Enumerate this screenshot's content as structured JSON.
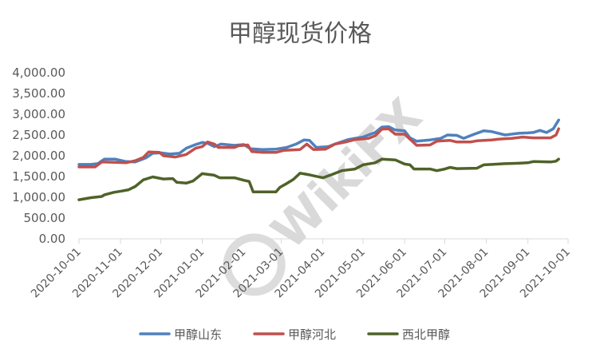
{
  "chart_data": {
    "type": "line",
    "title": "甲醇现货价格",
    "xlabel": "",
    "ylabel": "",
    "ylim": [
      0,
      4000
    ],
    "yticks": [
      "0.00",
      "500.00",
      "1,000.00",
      "1,500.00",
      "2,000.00",
      "2,500.00",
      "3,000.00",
      "3,500.00",
      "4,000.00"
    ],
    "xticks": [
      "2020-10-01",
      "2020-11-01",
      "2020-12-01",
      "2021-01-01",
      "2021-02-01",
      "2021-03-01",
      "2021-04-01",
      "2021-05-01",
      "2021-06-01",
      "2021-07-01",
      "2021-08-01",
      "2021-09-01",
      "2021-10-01"
    ],
    "xlim": [
      "2020-10-01",
      "2021-10-01"
    ],
    "grid": false,
    "legend_position": "bottom",
    "watermark": "WikiFX",
    "series": [
      {
        "name": "甲醇山东",
        "color": "#4f81bd",
        "points": [
          [
            "2020-10-01",
            1790
          ],
          [
            "2020-10-10",
            1790
          ],
          [
            "2020-10-15",
            1810
          ],
          [
            "2020-10-20",
            1920
          ],
          [
            "2020-10-28",
            1920
          ],
          [
            "2020-11-05",
            1860
          ],
          [
            "2020-11-12",
            1850
          ],
          [
            "2020-11-20",
            1950
          ],
          [
            "2020-11-25",
            2060
          ],
          [
            "2020-12-01",
            2070
          ],
          [
            "2020-12-08",
            2040
          ],
          [
            "2020-12-15",
            2060
          ],
          [
            "2020-12-20",
            2180
          ],
          [
            "2020-12-27",
            2270
          ],
          [
            "2021-01-01",
            2320
          ],
          [
            "2021-01-05",
            2300
          ],
          [
            "2021-01-10",
            2220
          ],
          [
            "2021-01-15",
            2280
          ],
          [
            "2021-01-25",
            2250
          ],
          [
            "2021-02-01",
            2270
          ],
          [
            "2021-02-06",
            2170
          ],
          [
            "2021-02-15",
            2150
          ],
          [
            "2021-02-25",
            2160
          ],
          [
            "2021-03-05",
            2200
          ],
          [
            "2021-03-12",
            2280
          ],
          [
            "2021-03-18",
            2380
          ],
          [
            "2021-03-22",
            2370
          ],
          [
            "2021-03-27",
            2200
          ],
          [
            "2021-04-05",
            2220
          ],
          [
            "2021-04-10",
            2280
          ],
          [
            "2021-04-20",
            2390
          ],
          [
            "2021-04-25",
            2420
          ],
          [
            "2021-05-01",
            2450
          ],
          [
            "2021-05-10",
            2560
          ],
          [
            "2021-05-15",
            2690
          ],
          [
            "2021-05-20",
            2700
          ],
          [
            "2021-05-25",
            2620
          ],
          [
            "2021-06-01",
            2600
          ],
          [
            "2021-06-05",
            2430
          ],
          [
            "2021-06-10",
            2350
          ],
          [
            "2021-06-20",
            2380
          ],
          [
            "2021-06-28",
            2420
          ],
          [
            "2021-07-03",
            2500
          ],
          [
            "2021-07-10",
            2490
          ],
          [
            "2021-07-15",
            2420
          ],
          [
            "2021-07-23",
            2520
          ],
          [
            "2021-07-30",
            2600
          ],
          [
            "2021-08-05",
            2580
          ],
          [
            "2021-08-15",
            2500
          ],
          [
            "2021-08-25",
            2540
          ],
          [
            "2021-09-01",
            2550
          ],
          [
            "2021-09-05",
            2560
          ],
          [
            "2021-09-10",
            2610
          ],
          [
            "2021-09-15",
            2560
          ],
          [
            "2021-09-20",
            2650
          ],
          [
            "2021-09-24",
            2860
          ]
        ]
      },
      {
        "name": "甲醇河北",
        "color": "#c0504d",
        "points": [
          [
            "2020-10-01",
            1730
          ],
          [
            "2020-10-13",
            1730
          ],
          [
            "2020-10-18",
            1850
          ],
          [
            "2020-10-28",
            1840
          ],
          [
            "2020-11-05",
            1830
          ],
          [
            "2020-11-12",
            1880
          ],
          [
            "2020-11-18",
            1960
          ],
          [
            "2020-11-22",
            2090
          ],
          [
            "2020-11-30",
            2080
          ],
          [
            "2020-12-03",
            2000
          ],
          [
            "2020-12-12",
            1970
          ],
          [
            "2020-12-20",
            2030
          ],
          [
            "2020-12-27",
            2180
          ],
          [
            "2021-01-01",
            2220
          ],
          [
            "2021-01-05",
            2330
          ],
          [
            "2021-01-10",
            2280
          ],
          [
            "2021-01-13",
            2200
          ],
          [
            "2021-01-25",
            2200
          ],
          [
            "2021-01-28",
            2240
          ],
          [
            "2021-02-04",
            2260
          ],
          [
            "2021-02-07",
            2100
          ],
          [
            "2021-02-15",
            2080
          ],
          [
            "2021-02-25",
            2080
          ],
          [
            "2021-03-03",
            2130
          ],
          [
            "2021-03-15",
            2150
          ],
          [
            "2021-03-20",
            2280
          ],
          [
            "2021-03-25",
            2150
          ],
          [
            "2021-04-03",
            2160
          ],
          [
            "2021-04-10",
            2280
          ],
          [
            "2021-04-18",
            2330
          ],
          [
            "2021-04-25",
            2390
          ],
          [
            "2021-05-05",
            2420
          ],
          [
            "2021-05-10",
            2480
          ],
          [
            "2021-05-15",
            2640
          ],
          [
            "2021-05-20",
            2650
          ],
          [
            "2021-05-25",
            2520
          ],
          [
            "2021-06-01",
            2520
          ],
          [
            "2021-06-05",
            2400
          ],
          [
            "2021-06-10",
            2250
          ],
          [
            "2021-06-20",
            2260
          ],
          [
            "2021-06-25",
            2350
          ],
          [
            "2021-07-05",
            2370
          ],
          [
            "2021-07-10",
            2330
          ],
          [
            "2021-07-20",
            2330
          ],
          [
            "2021-07-25",
            2360
          ],
          [
            "2021-08-05",
            2380
          ],
          [
            "2021-08-10",
            2400
          ],
          [
            "2021-08-20",
            2420
          ],
          [
            "2021-08-28",
            2450
          ],
          [
            "2021-09-05",
            2430
          ],
          [
            "2021-09-18",
            2430
          ],
          [
            "2021-09-22",
            2500
          ],
          [
            "2021-09-24",
            2650
          ]
        ]
      },
      {
        "name": "西北甲醇",
        "color": "#4f6228",
        "points": [
          [
            "2020-10-01",
            940
          ],
          [
            "2020-10-10",
            990
          ],
          [
            "2020-10-18",
            1020
          ],
          [
            "2020-10-20",
            1060
          ],
          [
            "2020-10-27",
            1120
          ],
          [
            "2020-11-02",
            1150
          ],
          [
            "2020-11-07",
            1180
          ],
          [
            "2020-11-12",
            1260
          ],
          [
            "2020-11-18",
            1420
          ],
          [
            "2020-11-25",
            1490
          ],
          [
            "2020-12-03",
            1440
          ],
          [
            "2020-12-10",
            1450
          ],
          [
            "2020-12-13",
            1360
          ],
          [
            "2020-12-20",
            1340
          ],
          [
            "2020-12-25",
            1390
          ],
          [
            "2021-01-01",
            1570
          ],
          [
            "2021-01-10",
            1530
          ],
          [
            "2021-01-14",
            1470
          ],
          [
            "2021-01-25",
            1470
          ],
          [
            "2021-02-01",
            1410
          ],
          [
            "2021-02-05",
            1380
          ],
          [
            "2021-02-08",
            1130
          ],
          [
            "2021-02-25",
            1130
          ],
          [
            "2021-02-28",
            1240
          ],
          [
            "2021-03-05",
            1330
          ],
          [
            "2021-03-10",
            1430
          ],
          [
            "2021-03-15",
            1580
          ],
          [
            "2021-03-22",
            1540
          ],
          [
            "2021-04-01",
            1470
          ],
          [
            "2021-04-08",
            1550
          ],
          [
            "2021-04-15",
            1640
          ],
          [
            "2021-04-25",
            1680
          ],
          [
            "2021-05-01",
            1780
          ],
          [
            "2021-05-10",
            1830
          ],
          [
            "2021-05-15",
            1920
          ],
          [
            "2021-05-25",
            1900
          ],
          [
            "2021-06-01",
            1800
          ],
          [
            "2021-06-05",
            1780
          ],
          [
            "2021-06-08",
            1680
          ],
          [
            "2021-06-20",
            1680
          ],
          [
            "2021-06-25",
            1640
          ],
          [
            "2021-07-01",
            1680
          ],
          [
            "2021-07-05",
            1720
          ],
          [
            "2021-07-10",
            1690
          ],
          [
            "2021-07-25",
            1700
          ],
          [
            "2021-07-30",
            1780
          ],
          [
            "2021-08-05",
            1790
          ],
          [
            "2021-08-15",
            1810
          ],
          [
            "2021-08-25",
            1820
          ],
          [
            "2021-09-01",
            1830
          ],
          [
            "2021-09-05",
            1860
          ],
          [
            "2021-09-18",
            1850
          ],
          [
            "2021-09-22",
            1870
          ],
          [
            "2021-09-24",
            1920
          ]
        ]
      }
    ]
  }
}
